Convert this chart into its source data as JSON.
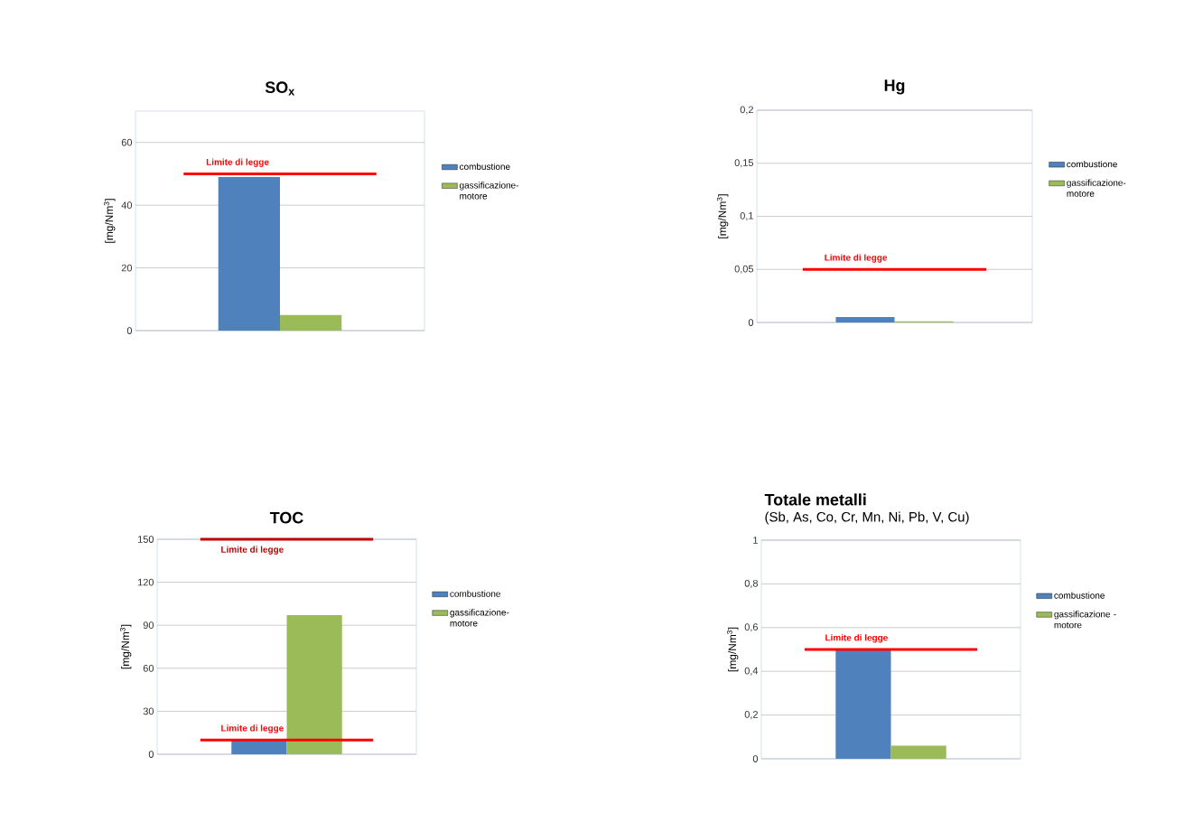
{
  "chart_data": [
    {
      "type": "bar",
      "title": "SO$_{x}$",
      "ylabel": "[mg/Nm$^{3}$]",
      "categories": [
        null
      ],
      "series": [
        {
          "name": "combustione",
          "color": "#4f81bd",
          "values": [
            49
          ]
        },
        {
          "name": "gassificazione-motore",
          "color": "#9bbb59",
          "values": [
            5
          ]
        }
      ],
      "ylim": [
        0,
        70
      ],
      "yticks": [
        0,
        20,
        40,
        60
      ],
      "grid": "y",
      "legend": "right",
      "ref_lines": [
        {
          "axis": "y",
          "value": 50,
          "label": "Limite di legge",
          "color": "#ff0000"
        }
      ]
    },
    {
      "type": "bar",
      "title": "Hg",
      "ylabel": "[mg/Nm$^{3}$]",
      "categories": [
        null
      ],
      "series": [
        {
          "name": "combustione",
          "color": "#4f81bd",
          "values": [
            0.005
          ]
        },
        {
          "name": "gassificazione-motore",
          "color": "#9bbb59",
          "values": [
            0.001
          ]
        }
      ],
      "ylim": [
        0,
        0.2
      ],
      "yticks": [
        0,
        {
          "value": 0.05,
          "label": "0,05"
        },
        {
          "value": 0.1,
          "label": "0,1"
        },
        {
          "value": 0.15,
          "label": "0,15"
        },
        {
          "value": 0.2,
          "label": "0,2"
        }
      ],
      "grid": "y",
      "legend": "right",
      "ref_lines": [
        {
          "axis": "y",
          "value": 0.05,
          "label": "Limite di legge",
          "color": "#ff0000"
        }
      ]
    },
    {
      "type": "bar",
      "title": "TOC",
      "ylabel": "[mg/Nm$^{3}$]",
      "categories": [
        null
      ],
      "series": [
        {
          "name": "combustione",
          "color": "#4f81bd",
          "values": [
            10
          ]
        },
        {
          "name": "gassificazione-motore",
          "color": "#9bbb59",
          "values": [
            97
          ]
        }
      ],
      "ylim": [
        0,
        150
      ],
      "yticks": [
        0,
        30,
        60,
        90,
        120,
        150
      ],
      "grid": "y",
      "legend": "right",
      "ref_lines": [
        {
          "axis": "y",
          "value": 10,
          "label": "Limite di legge",
          "color": "#ff0000"
        },
        {
          "axis": "y",
          "value": 150,
          "label": "Limite di legge",
          "color": "#c00000"
        }
      ]
    },
    {
      "type": "bar",
      "title": "Totale metalli",
      "subtitle": "(Sb, As, Co, Cr, Mn, Ni, Pb, V, Cu)",
      "ylabel": "[mg/Nm$^{3}$]",
      "categories": [
        null
      ],
      "series": [
        {
          "name": "combustione",
          "color": "#4f81bd",
          "values": [
            0.5
          ]
        },
        {
          "name": "gassificazione -motore",
          "color": "#9bbb59",
          "values": [
            0.06
          ]
        }
      ],
      "ylim": [
        0,
        1
      ],
      "yticks": [
        0,
        {
          "value": 0.2,
          "label": "0,2"
        },
        {
          "value": 0.4,
          "label": "0,4"
        },
        {
          "value": 0.6,
          "label": "0,6"
        },
        {
          "value": 0.8,
          "label": "0,8"
        },
        1
      ],
      "grid": "y",
      "legend": "right",
      "ref_lines": [
        {
          "axis": "y",
          "value": 0.5,
          "label": "Limite di legge",
          "color": "#ff0000"
        }
      ]
    }
  ]
}
